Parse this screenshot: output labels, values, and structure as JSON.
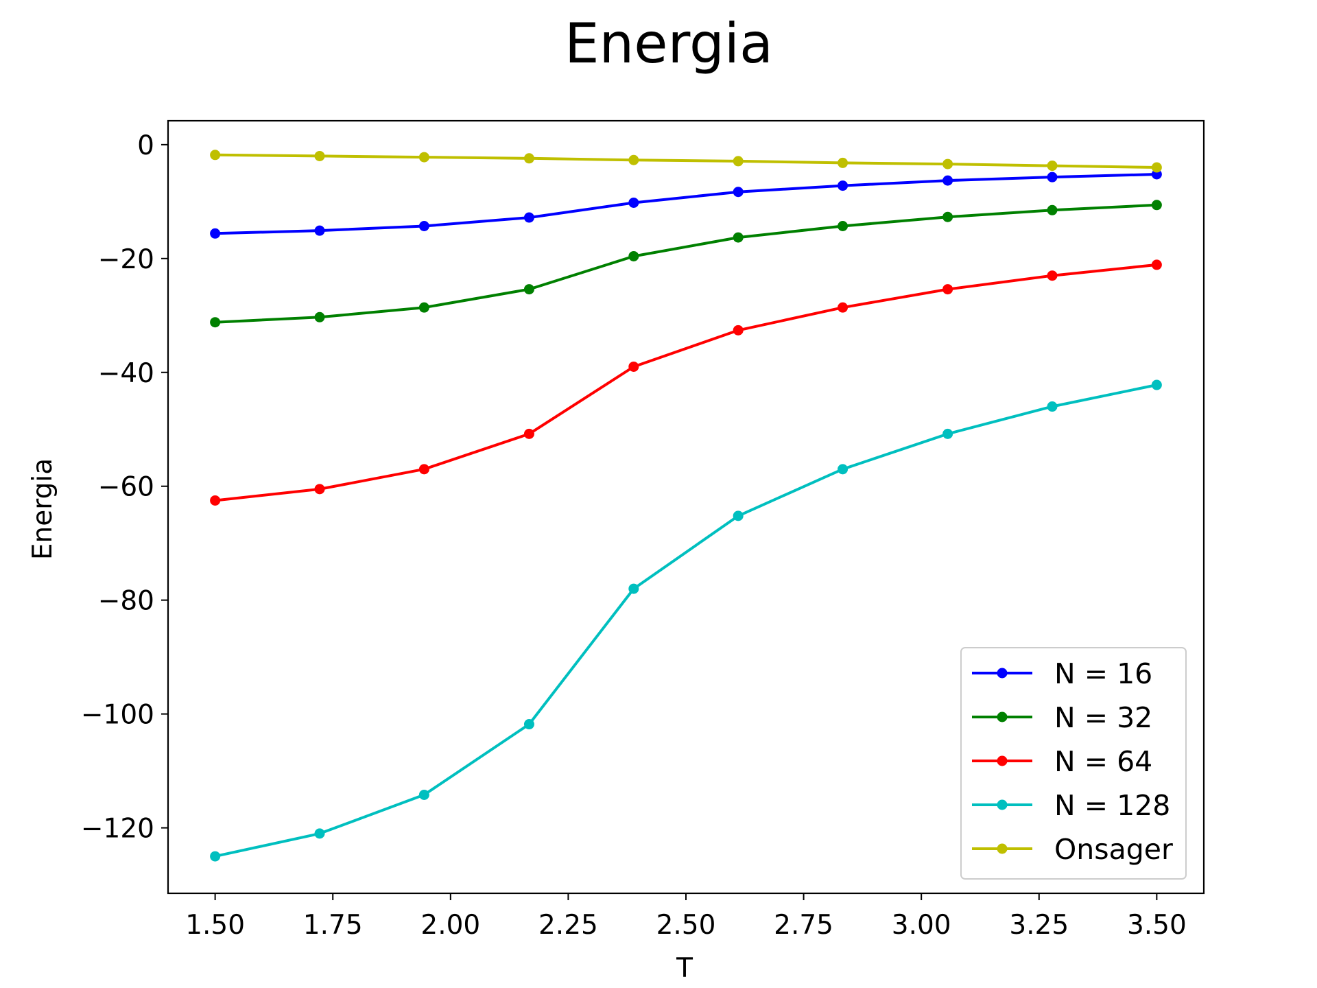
{
  "chart_data": {
    "type": "line",
    "title": "Energia",
    "xlabel": "T",
    "ylabel": "Energia",
    "xlim": [
      1.4,
      3.6
    ],
    "ylim": [
      -131.5,
      4.2
    ],
    "xticks": [
      1.5,
      1.75,
      2.0,
      2.25,
      2.5,
      2.75,
      3.0,
      3.25,
      3.5
    ],
    "xtick_labels": [
      "1.50",
      "1.75",
      "2.00",
      "2.25",
      "2.50",
      "2.75",
      "3.00",
      "3.25",
      "3.50"
    ],
    "yticks": [
      0,
      -20,
      -40,
      -60,
      -80,
      -100,
      -120
    ],
    "ytick_labels": [
      "0",
      "−20",
      "−40",
      "−60",
      "−80",
      "−100",
      "−120"
    ],
    "grid": false,
    "legend_position": "lower-right",
    "x": [
      1.5,
      1.722,
      1.944,
      2.167,
      2.389,
      2.611,
      2.833,
      3.056,
      3.278,
      3.5
    ],
    "series": [
      {
        "name": "N = 16",
        "color": "#0000ff",
        "values": [
          -15.6,
          -15.1,
          -14.3,
          -12.8,
          -10.2,
          -8.3,
          -7.2,
          -6.3,
          -5.7,
          -5.2
        ]
      },
      {
        "name": "N = 32",
        "color": "#008000",
        "values": [
          -31.2,
          -30.3,
          -28.6,
          -25.4,
          -19.6,
          -16.3,
          -14.3,
          -12.7,
          -11.5,
          -10.6
        ]
      },
      {
        "name": "N = 64",
        "color": "#ff0000",
        "values": [
          -62.5,
          -60.5,
          -57.0,
          -50.8,
          -39.0,
          -32.6,
          -28.6,
          -25.4,
          -23.0,
          -21.1
        ]
      },
      {
        "name": "N = 128",
        "color": "#00bfbf",
        "values": [
          -125.0,
          -121.0,
          -114.2,
          -101.8,
          -78.0,
          -65.2,
          -57.0,
          -50.8,
          -46.0,
          -42.2
        ]
      },
      {
        "name": "Onsager",
        "color": "#bfbf00",
        "values": [
          -1.8,
          -2.0,
          -2.2,
          -2.4,
          -2.7,
          -2.9,
          -3.2,
          -3.4,
          -3.7,
          -4.0
        ]
      }
    ]
  }
}
